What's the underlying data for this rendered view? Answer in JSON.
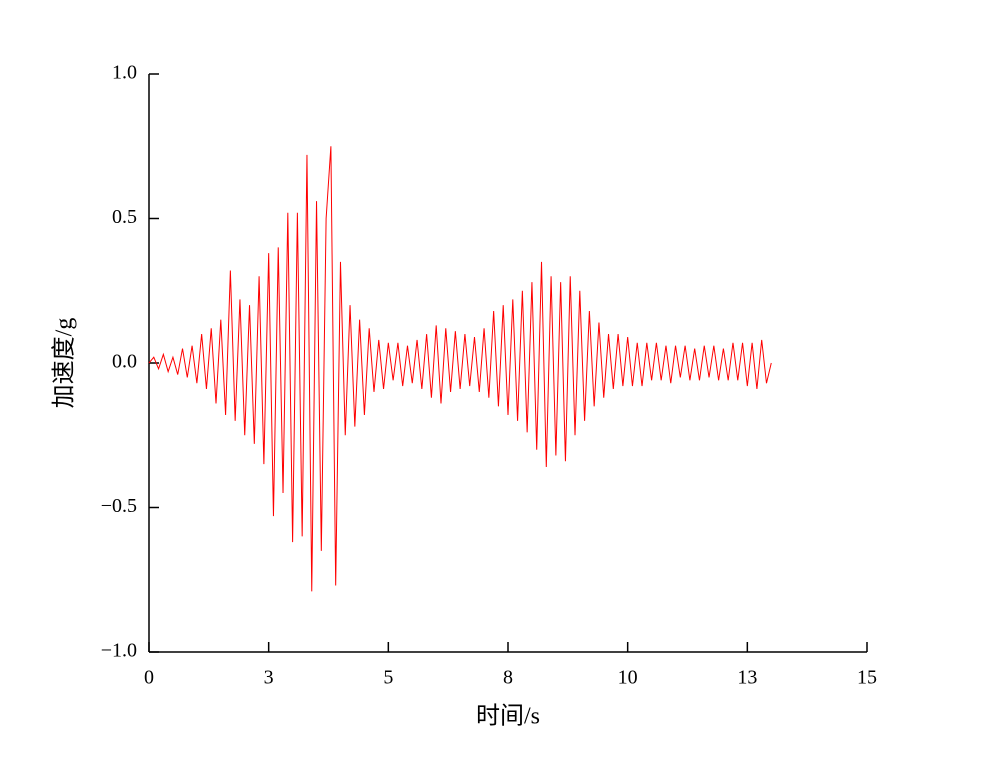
{
  "chart_data": {
    "type": "line",
    "xlabel": "时间/s",
    "ylabel": "加速度/g",
    "xlim": [
      0,
      15
    ],
    "ylim": [
      -1,
      1
    ],
    "xticks": [
      0,
      {
        "value": 2.5,
        "label": "3"
      },
      5,
      {
        "value": 7.5,
        "label": "8"
      },
      10,
      {
        "value": 12.5,
        "label": "13"
      },
      15
    ],
    "yticks": [
      {
        "value": 1,
        "label": "1.0"
      },
      {
        "value": 0.5,
        "label": "0.5"
      },
      {
        "value": 0,
        "label": "0.0"
      },
      {
        "value": -0.5,
        "label": "−0.5"
      },
      {
        "value": -1,
        "label": "−1.0"
      }
    ],
    "grid": false,
    "series": [
      {
        "color": "#ff0000",
        "x": [
          0,
          0.1,
          0.2,
          0.3,
          0.4,
          0.5,
          0.6,
          0.7,
          0.8,
          0.9,
          1.0,
          1.1,
          1.2,
          1.3,
          1.4,
          1.5,
          1.6,
          1.7,
          1.8,
          1.9,
          2.0,
          2.1,
          2.2,
          2.3,
          2.4,
          2.5,
          2.6,
          2.7,
          2.8,
          2.9,
          3.0,
          3.1,
          3.2,
          3.3,
          3.4,
          3.5,
          3.6,
          3.7,
          3.8,
          3.9,
          4.0,
          4.1,
          4.2,
          4.3,
          4.4,
          4.5,
          4.6,
          4.7,
          4.8,
          4.9,
          5.0,
          5.1,
          5.2,
          5.3,
          5.4,
          5.5,
          5.6,
          5.7,
          5.8,
          5.9,
          6.0,
          6.1,
          6.2,
          6.3,
          6.4,
          6.5,
          6.6,
          6.7,
          6.8,
          6.9,
          7.0,
          7.1,
          7.2,
          7.3,
          7.4,
          7.5,
          7.6,
          7.7,
          7.8,
          7.9,
          8.0,
          8.1,
          8.2,
          8.3,
          8.4,
          8.5,
          8.6,
          8.7,
          8.8,
          8.9,
          9.0,
          9.1,
          9.2,
          9.3,
          9.4,
          9.5,
          9.6,
          9.7,
          9.8,
          9.9,
          10.0,
          10.1,
          10.2,
          10.3,
          10.4,
          10.5,
          10.6,
          10.7,
          10.8,
          10.9,
          11.0,
          11.1,
          11.2,
          11.3,
          11.4,
          11.5,
          11.6,
          11.7,
          11.8,
          11.9,
          12.0,
          12.1,
          12.2,
          12.3,
          12.4,
          12.5,
          12.6,
          12.7,
          12.8,
          12.9,
          13.0
        ],
        "values": [
          0,
          0.02,
          -0.02,
          0.03,
          -0.03,
          0.02,
          -0.04,
          0.05,
          -0.05,
          0.06,
          -0.07,
          0.1,
          -0.09,
          0.12,
          -0.14,
          0.15,
          -0.18,
          0.32,
          -0.2,
          0.22,
          -0.25,
          0.2,
          -0.28,
          0.3,
          -0.35,
          0.38,
          -0.53,
          0.4,
          -0.45,
          0.52,
          -0.62,
          0.52,
          -0.6,
          0.72,
          -0.79,
          0.56,
          -0.65,
          0.5,
          0.75,
          -0.77,
          0.35,
          -0.25,
          0.2,
          -0.22,
          0.15,
          -0.18,
          0.12,
          -0.1,
          0.08,
          -0.09,
          0.07,
          -0.06,
          0.07,
          -0.08,
          0.06,
          -0.07,
          0.08,
          -0.09,
          0.1,
          -0.12,
          0.13,
          -0.14,
          0.12,
          -0.1,
          0.11,
          -0.09,
          0.1,
          -0.08,
          0.09,
          -0.1,
          0.12,
          -0.12,
          0.18,
          -0.15,
          0.2,
          -0.18,
          0.22,
          -0.2,
          0.25,
          -0.24,
          0.28,
          -0.3,
          0.35,
          -0.36,
          0.3,
          -0.32,
          0.28,
          -0.34,
          0.3,
          -0.25,
          0.25,
          -0.2,
          0.18,
          -0.15,
          0.14,
          -0.12,
          0.1,
          -0.09,
          0.1,
          -0.08,
          0.09,
          -0.08,
          0.07,
          -0.08,
          0.07,
          -0.06,
          0.07,
          -0.06,
          0.06,
          -0.07,
          0.06,
          -0.05,
          0.06,
          -0.06,
          0.05,
          -0.06,
          0.06,
          -0.05,
          0.06,
          -0.06,
          0.05,
          -0.06,
          0.07,
          -0.06,
          0.07,
          -0.08,
          0.07,
          -0.09,
          0.08,
          -0.07,
          0.0
        ]
      }
    ]
  }
}
